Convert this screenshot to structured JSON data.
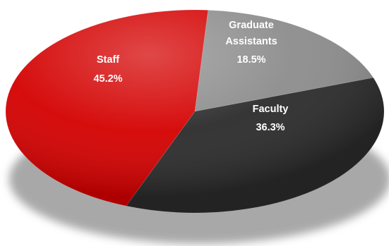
{
  "chart_data": {
    "type": "pie",
    "slices": [
      {
        "label": [
          "Graduate",
          "Assistants"
        ],
        "percent_label": "18.5%",
        "value": 18.5,
        "color": "#8c8c8c"
      },
      {
        "label": [
          "Faculty"
        ],
        "percent_label": "36.3%",
        "value": 36.3,
        "color": "#2b2b2b"
      },
      {
        "label": [
          "Staff"
        ],
        "percent_label": "45.2%",
        "value": 45.2,
        "color": "#d40000"
      }
    ],
    "legend": "none",
    "data_labels": "inside"
  }
}
